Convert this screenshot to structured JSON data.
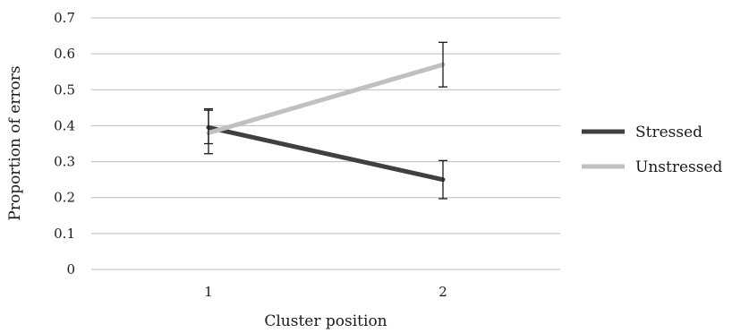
{
  "chart_data": {
    "type": "line",
    "title": "",
    "xlabel": "Cluster position",
    "ylabel": "Proportion of errors",
    "categories": [
      "1",
      "2"
    ],
    "ylim": [
      0,
      0.7
    ],
    "yticks": [
      "0",
      "0.1",
      "0.2",
      "0.3",
      "0.4",
      "0.5",
      "0.6",
      "0.7"
    ],
    "grid": true,
    "legend_position": "right",
    "error_bars": true,
    "series": [
      {
        "name": "Stressed",
        "color": "#404040",
        "values": [
          0.395,
          0.25
        ],
        "error_low": [
          0.35,
          0.197
        ],
        "error_high": [
          0.447,
          0.303
        ]
      },
      {
        "name": "Unstressed",
        "color": "#c0c0c0",
        "values": [
          0.38,
          0.57
        ],
        "error_low": [
          0.322,
          0.508
        ],
        "error_high": [
          0.443,
          0.632
        ]
      }
    ]
  }
}
